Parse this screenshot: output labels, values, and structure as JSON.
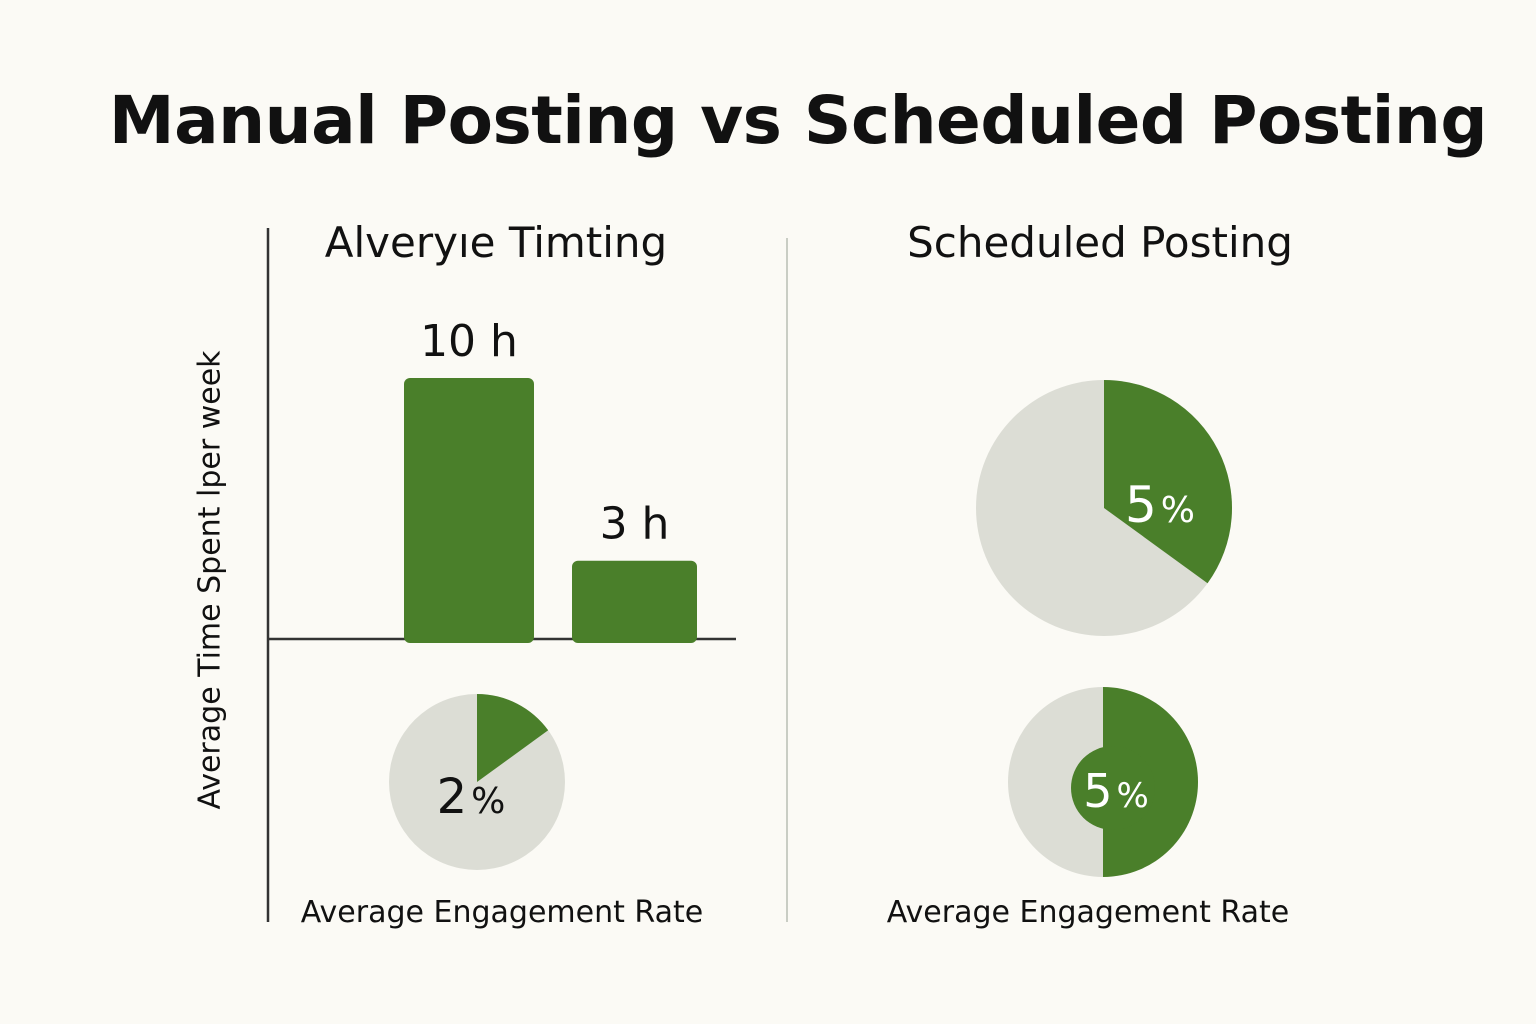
{
  "title": "Manual Posting vs Scheduled Posting",
  "colors": {
    "accent": "#4a7f2a",
    "track": "#dcddd5",
    "axis": "#333333",
    "divider": "#c9cdc4"
  },
  "chart_data": [
    {
      "type": "bar",
      "title": "Alveryıe Timting",
      "ylabel": "Average Time Spent lper week",
      "categories": [
        "",
        ""
      ],
      "values": [
        10,
        3
      ],
      "data_labels": [
        "10 h",
        "3 h"
      ],
      "ylim": [
        0,
        10
      ]
    },
    {
      "type": "pie",
      "title": "",
      "xlabel": "Average Engagement Rate",
      "value": 2,
      "fraction_shown": 0.15,
      "label_num": "2",
      "label_unit": "%"
    },
    {
      "type": "pie",
      "title": "Scheduled Posting",
      "value": 5,
      "fraction_shown": 0.35,
      "label_num": "5",
      "label_unit": "%"
    },
    {
      "type": "pie",
      "title": "",
      "xlabel": "Average Engagement Rate",
      "value": 5,
      "fraction_shown": 0.5,
      "label_num": "5",
      "label_unit": "%"
    }
  ]
}
